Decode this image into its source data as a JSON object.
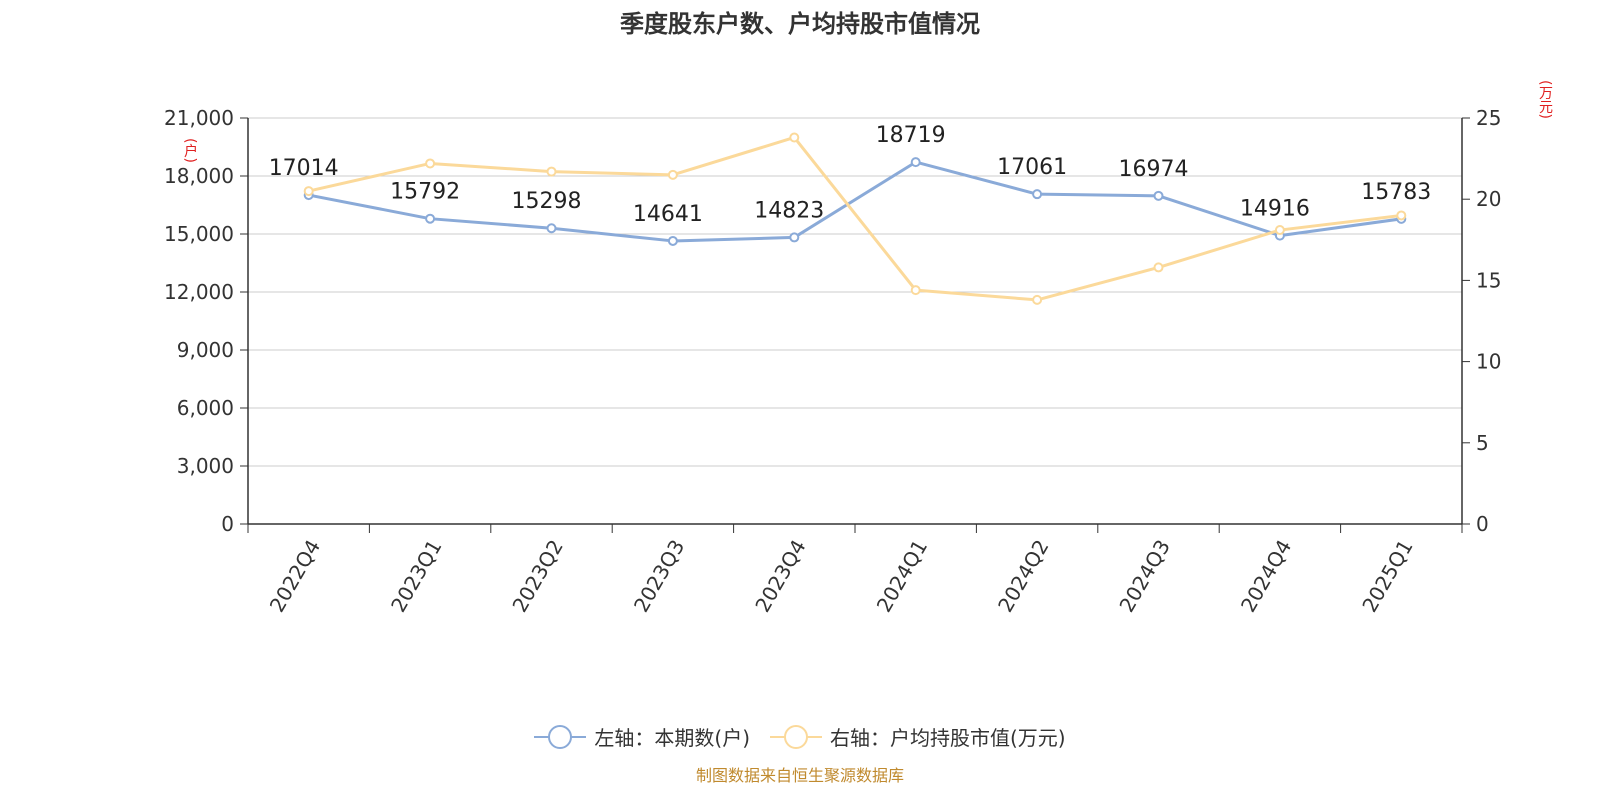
{
  "title": "季度股东户数、户均持股市值情况",
  "source": "制图数据来自恒生聚源数据库",
  "units": {
    "left": "(户)",
    "right": "(万元)"
  },
  "legend": [
    {
      "label": "左轴：本期数(户)",
      "color": "#8aaad8"
    },
    {
      "label": "右轴：户均持股市值(万元)",
      "color": "#fbd99a"
    }
  ],
  "chart_data": {
    "type": "line",
    "categories": [
      "2022Q4",
      "2023Q1",
      "2023Q2",
      "2023Q3",
      "2023Q4",
      "2024Q1",
      "2024Q2",
      "2024Q3",
      "2024Q4",
      "2025Q1"
    ],
    "series": [
      {
        "name": "左轴：本期数(户)",
        "axis": "left",
        "color": "#8aaad8",
        "values": [
          17014,
          15792,
          15298,
          14641,
          14823,
          18719,
          17061,
          16974,
          14916,
          15783
        ],
        "labels": [
          "17014",
          "15792",
          "15298",
          "14641",
          "14823",
          "18719",
          "17061",
          "16974",
          "14916",
          "15783"
        ]
      },
      {
        "name": "右轴：户均持股市值(万元)",
        "axis": "right",
        "color": "#fbd99a",
        "values": [
          20.5,
          22.2,
          21.7,
          21.5,
          23.8,
          14.4,
          13.8,
          15.8,
          18.1,
          19.0
        ]
      }
    ],
    "left_axis": {
      "min": 0,
      "max": 21000,
      "ticks": [
        0,
        3000,
        6000,
        9000,
        12000,
        15000,
        18000,
        21000
      ],
      "tick_labels": [
        "0",
        "3,000",
        "6,000",
        "9,000",
        "12,000",
        "15,000",
        "18,000",
        "21,000"
      ]
    },
    "right_axis": {
      "min": 0,
      "max": 25,
      "ticks": [
        0,
        5,
        10,
        15,
        20,
        25
      ],
      "tick_labels": [
        "0",
        "5",
        "10",
        "15",
        "20",
        "25"
      ]
    },
    "grid": true,
    "legend_position": "bottom"
  }
}
